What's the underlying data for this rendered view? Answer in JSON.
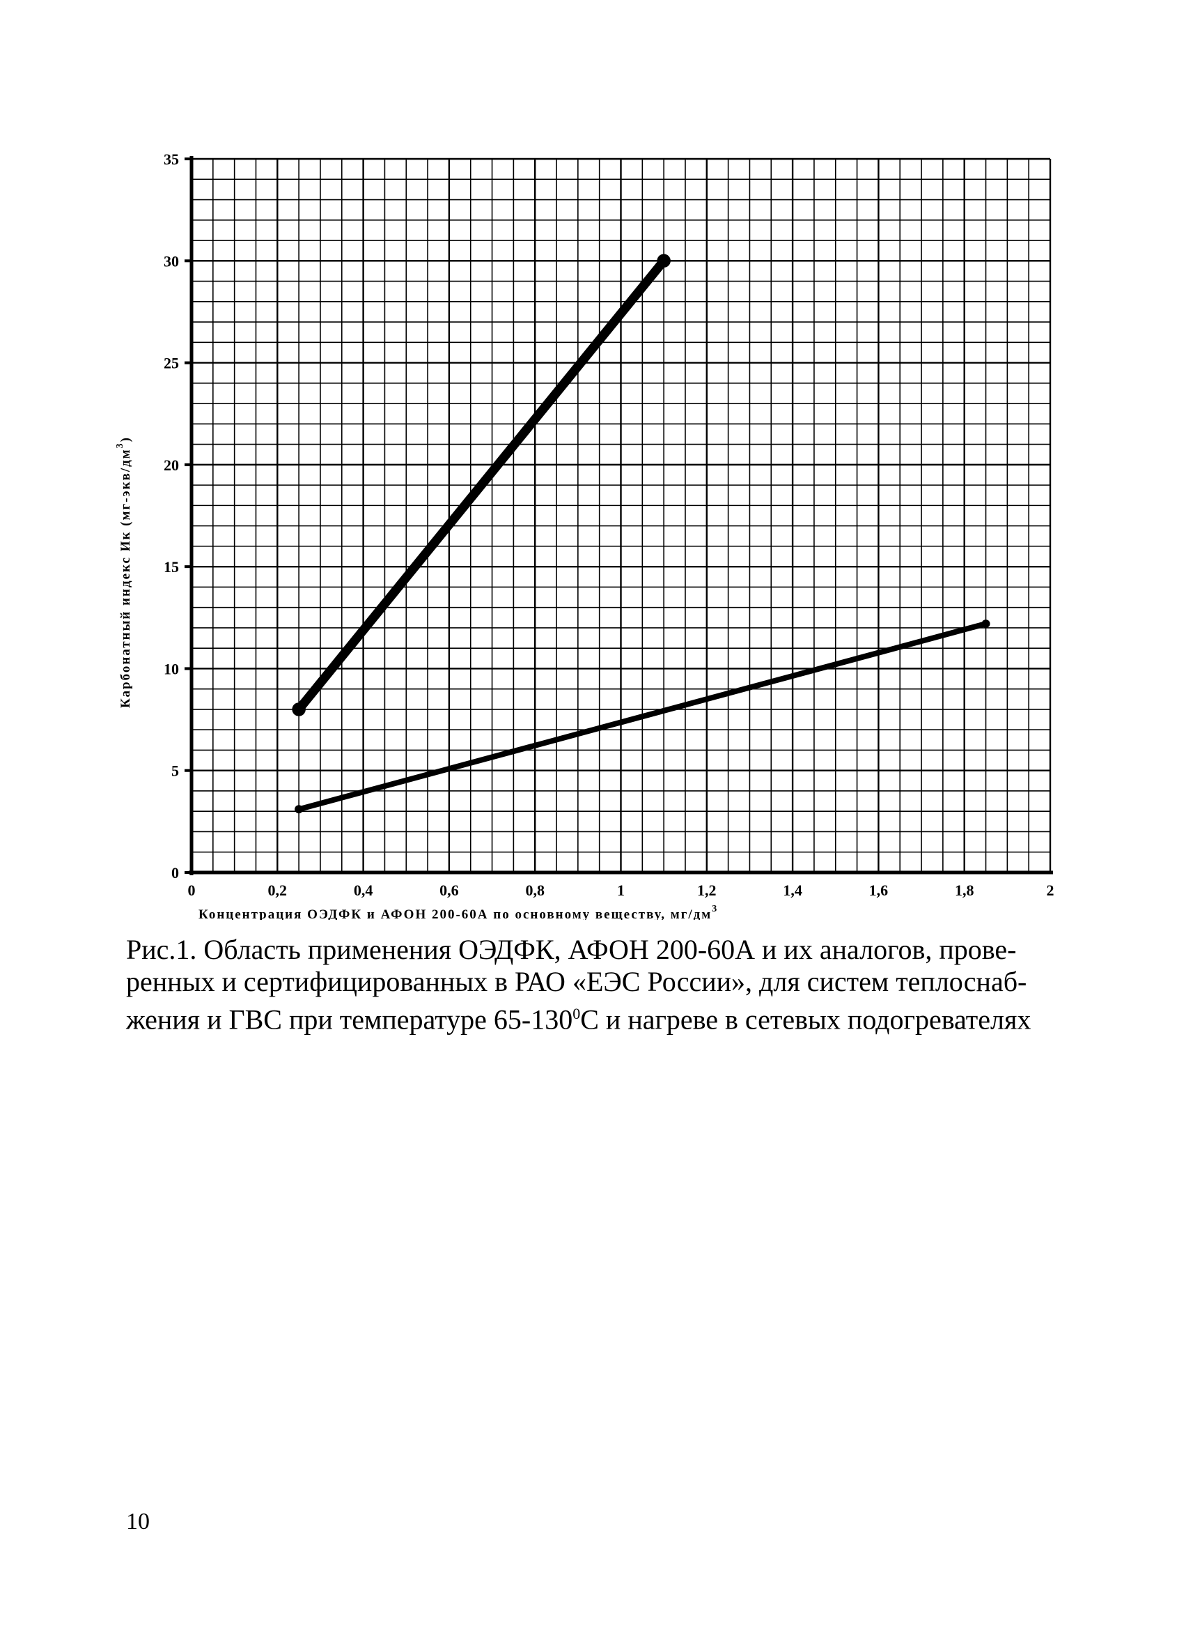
{
  "chart_data": {
    "type": "line",
    "xlabel": "Концентрация ОЭДФК и АФОН 200-60А по основному веществу, мг/дм",
    "xlabel_sup": "3",
    "ylabel": "Карбонатный индекс Ик (мг-экв/дм",
    "ylabel_sup": "3",
    "ylabel_end": ")",
    "xlim": [
      0,
      2
    ],
    "ylim": [
      0,
      35
    ],
    "x_ticks": [
      0,
      0.2,
      0.4,
      0.6,
      0.8,
      1,
      1.2,
      1.4,
      1.6,
      1.8,
      2
    ],
    "x_tick_labels": [
      "0",
      "0,2",
      "0,4",
      "0,6",
      "0,8",
      "1",
      "1,2",
      "1,4",
      "1,6",
      "1,8",
      "2"
    ],
    "y_ticks": [
      0,
      5,
      10,
      15,
      20,
      25,
      30,
      35
    ],
    "y_tick_labels": [
      "0",
      "5",
      "10",
      "15",
      "20",
      "25",
      "30",
      "35"
    ],
    "grid": true,
    "x_minor_step": 0.05,
    "y_minor_step": 1,
    "series": [
      {
        "x": [
          0.25,
          1.1
        ],
        "y": [
          8,
          30
        ],
        "style": "thick"
      },
      {
        "x": [
          0.25,
          1.85
        ],
        "y": [
          3.1,
          12.2
        ],
        "style": "thin"
      }
    ]
  },
  "caption": {
    "line1": "Рис.1. Область применения ОЭДФК, АФОН 200-60А и их аналогов, прове-",
    "line2": "ренных и сертифицированных в РАО «ЕЭС России», для систем теплоснаб-",
    "line3_a": "жения и ГВС при температуре 65-130",
    "line3_sup": "0",
    "line3_b": "С и нагреве в сетевых подогревателях"
  },
  "page_number": "10"
}
